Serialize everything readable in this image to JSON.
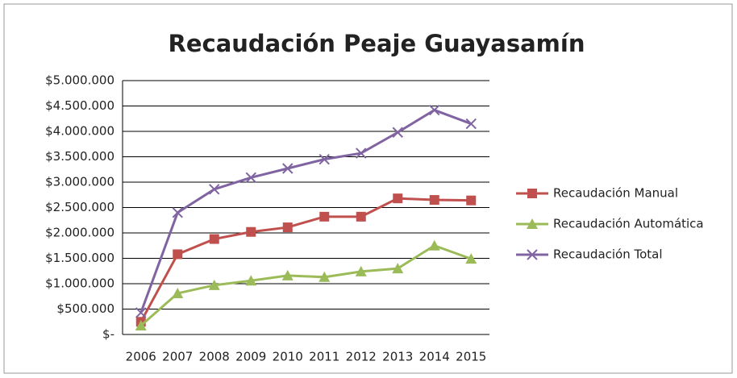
{
  "chart_data": {
    "type": "line",
    "title": "Recaudación Peaje Guayasamín",
    "categories": [
      "2006",
      "2007",
      "2008",
      "2009",
      "2010",
      "2011",
      "2012",
      "2013",
      "2014",
      "2015"
    ],
    "series": [
      {
        "name": "Recaudación Manual",
        "color": "#c0504d",
        "marker": "square",
        "values": [
          250000,
          1580000,
          1880000,
          2020000,
          2110000,
          2320000,
          2320000,
          2680000,
          2650000,
          2640000
        ]
      },
      {
        "name": "Recaudación Automática",
        "color": "#9bbb59",
        "marker": "triangle",
        "values": [
          175000,
          810000,
          970000,
          1060000,
          1160000,
          1130000,
          1240000,
          1300000,
          1750000,
          1490000
        ]
      },
      {
        "name": "Recaudación Total",
        "color": "#8064a2",
        "marker": "x",
        "values": [
          430000,
          2400000,
          2860000,
          3090000,
          3270000,
          3450000,
          3570000,
          3980000,
          4420000,
          4150000
        ]
      }
    ],
    "ylim": [
      0,
      5000000
    ],
    "yticks": [
      {
        "value": 0,
        "label": "$-"
      },
      {
        "value": 500000,
        "label": "$500.000"
      },
      {
        "value": 1000000,
        "label": "$1.000.000"
      },
      {
        "value": 1500000,
        "label": "$1.500.000"
      },
      {
        "value": 2000000,
        "label": "$2.000.000"
      },
      {
        "value": 2500000,
        "label": "$2.500.000"
      },
      {
        "value": 3000000,
        "label": "$3.000.000"
      },
      {
        "value": 3500000,
        "label": "$3.500.000"
      },
      {
        "value": 4000000,
        "label": "$4.000.000"
      },
      {
        "value": 4500000,
        "label": "$4.500.000"
      },
      {
        "value": 5000000,
        "label": "$5.000.000"
      }
    ],
    "grid": true,
    "legend": "right"
  }
}
